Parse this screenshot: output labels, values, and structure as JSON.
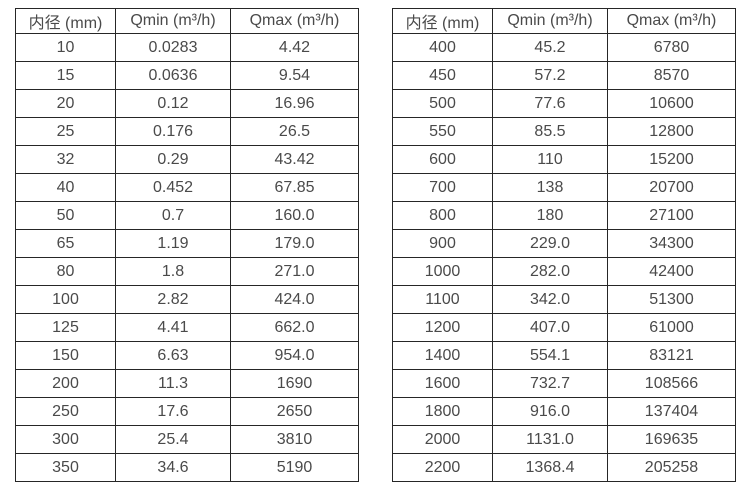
{
  "page": {
    "background_color": "#ffffff",
    "text_color": "#4a4a4a",
    "border_color": "#262626"
  },
  "tables": [
    {
      "name": "small-diameter-flow-table",
      "headers": [
        "内径 (mm)",
        "Qmin (m³/h)",
        "Qmax (m³/h)"
      ],
      "rows": [
        [
          "10",
          "0.0283",
          "4.42"
        ],
        [
          "15",
          "0.0636",
          "9.54"
        ],
        [
          "20",
          "0.12",
          "16.96"
        ],
        [
          "25",
          "0.176",
          "26.5"
        ],
        [
          "32",
          "0.29",
          "43.42"
        ],
        [
          "40",
          "0.452",
          "67.85"
        ],
        [
          "50",
          "0.7",
          "160.0"
        ],
        [
          "65",
          "1.19",
          "179.0"
        ],
        [
          "80",
          "1.8",
          "271.0"
        ],
        [
          "100",
          "2.82",
          "424.0"
        ],
        [
          "125",
          "4.41",
          "662.0"
        ],
        [
          "150",
          "6.63",
          "954.0"
        ],
        [
          "200",
          "11.3",
          "1690"
        ],
        [
          "250",
          "17.6",
          "2650"
        ],
        [
          "300",
          "25.4",
          "3810"
        ],
        [
          "350",
          "34.6",
          "5190"
        ]
      ]
    },
    {
      "name": "large-diameter-flow-table",
      "headers": [
        "内径 (mm)",
        "Qmin (m³/h)",
        "Qmax (m³/h)"
      ],
      "rows": [
        [
          "400",
          "45.2",
          "6780"
        ],
        [
          "450",
          "57.2",
          "8570"
        ],
        [
          "500",
          "77.6",
          "10600"
        ],
        [
          "550",
          "85.5",
          "12800"
        ],
        [
          "600",
          "110",
          "15200"
        ],
        [
          "700",
          "138",
          "20700"
        ],
        [
          "800",
          "180",
          "27100"
        ],
        [
          "900",
          "229.0",
          "34300"
        ],
        [
          "1000",
          "282.0",
          "42400"
        ],
        [
          "1100",
          "342.0",
          "51300"
        ],
        [
          "1200",
          "407.0",
          "61000"
        ],
        [
          "1400",
          "554.1",
          "83121"
        ],
        [
          "1600",
          "732.7",
          "108566"
        ],
        [
          "1800",
          "916.0",
          "137404"
        ],
        [
          "2000",
          "1131.0",
          "169635"
        ],
        [
          "2200",
          "1368.4",
          "205258"
        ]
      ]
    }
  ]
}
